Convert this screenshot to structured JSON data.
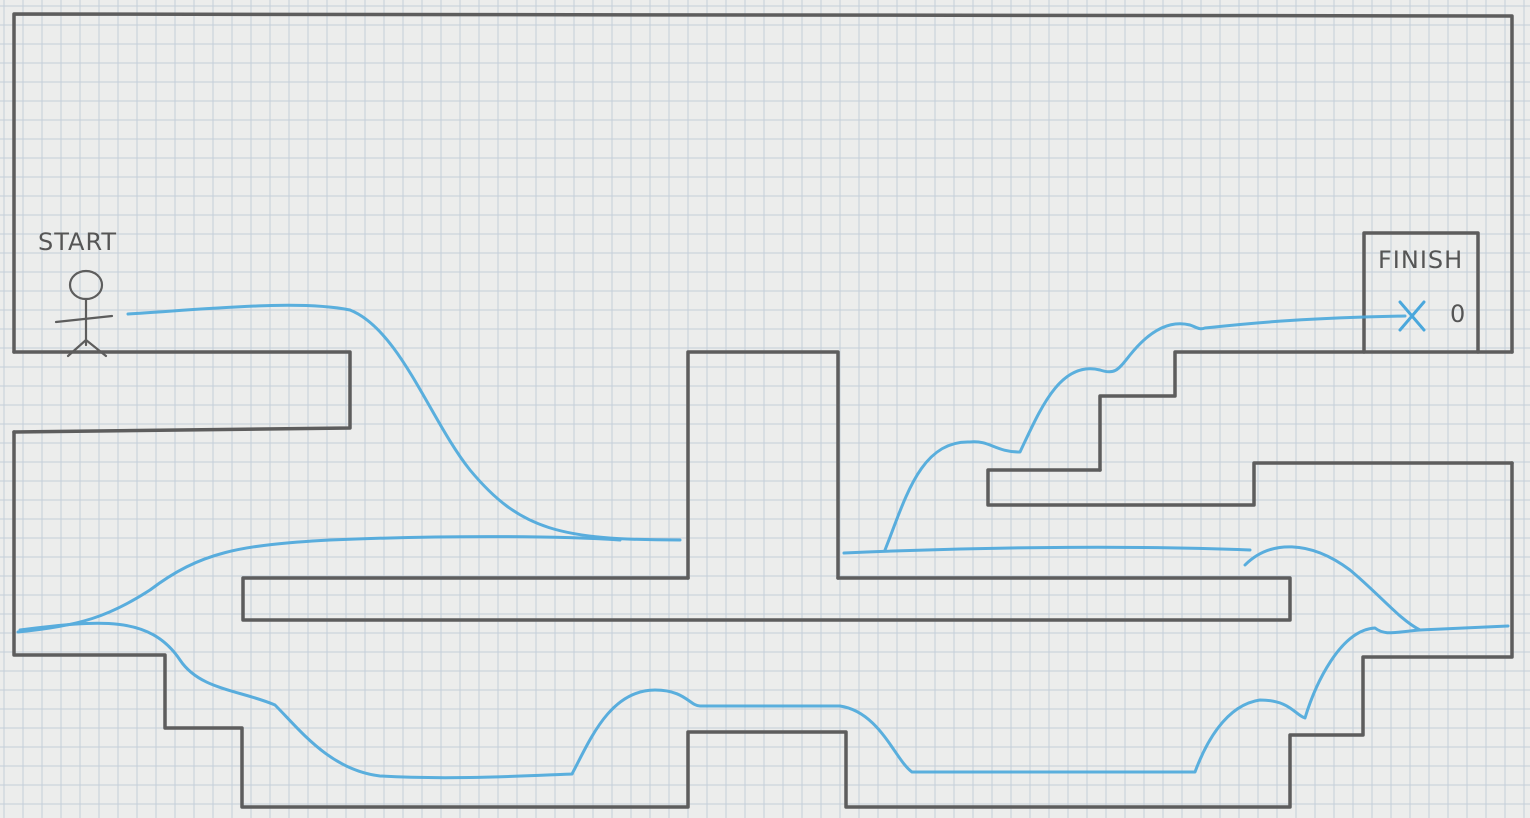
{
  "labels": {
    "start": "START",
    "finish": "FINISH",
    "finish_marker": "0"
  },
  "colors": {
    "paper": "#ecedec",
    "grid_line": "#c4cfd9",
    "pencil": "#5d5d5d",
    "path_blue": "#4aa7dc"
  },
  "icons": {
    "player": "stick-figure-icon",
    "goal": "x-mark-icon"
  }
}
